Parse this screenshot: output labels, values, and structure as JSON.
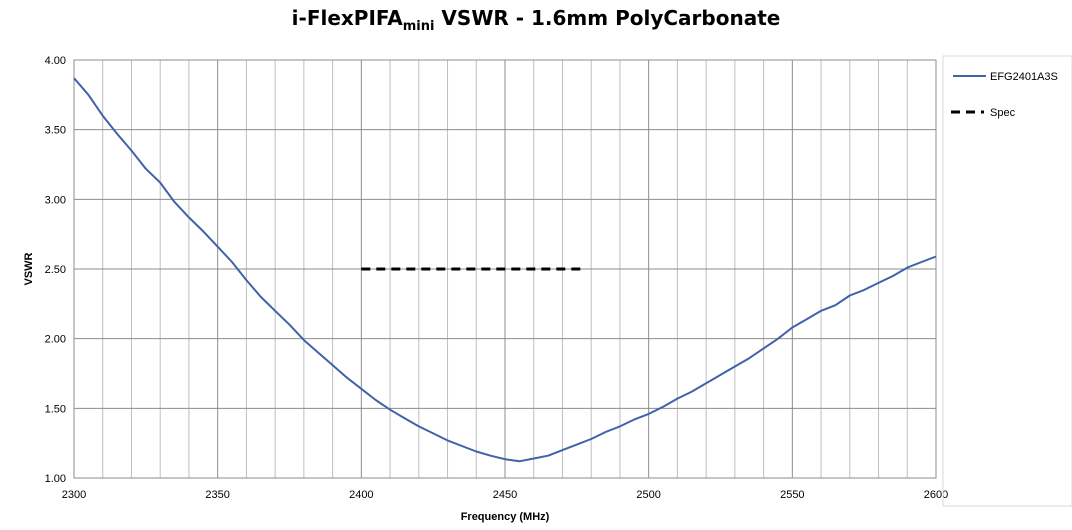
{
  "chart_data": {
    "type": "line",
    "title_main": "i-FlexPIFA",
    "title_sub": "mini",
    "title_rest": " VSWR - 1.6mm PolyCarbonate",
    "xlabel": "Frequency (MHz)",
    "ylabel": "VSWR",
    "xlim": [
      2300,
      2600
    ],
    "ylim": [
      1.0,
      4.0
    ],
    "x_ticks": [
      "2300",
      "2350",
      "2400",
      "2450",
      "2500",
      "2550",
      "2600"
    ],
    "y_ticks": [
      "1.00",
      "1.50",
      "2.00",
      "2.50",
      "3.00",
      "3.50",
      "4.00"
    ],
    "grid": true,
    "legend_position": "right",
    "series": [
      {
        "name": "EFG2401A3S",
        "color": "#4062a8",
        "style": "solid",
        "x": [
          2300,
          2305,
          2310,
          2315,
          2320,
          2325,
          2330,
          2335,
          2340,
          2345,
          2350,
          2355,
          2360,
          2365,
          2370,
          2375,
          2380,
          2385,
          2390,
          2395,
          2400,
          2405,
          2410,
          2415,
          2420,
          2425,
          2430,
          2435,
          2440,
          2445,
          2450,
          2455,
          2460,
          2465,
          2470,
          2475,
          2480,
          2485,
          2490,
          2495,
          2500,
          2505,
          2510,
          2515,
          2520,
          2525,
          2530,
          2535,
          2540,
          2545,
          2550,
          2555,
          2560,
          2565,
          2570,
          2575,
          2580,
          2585,
          2590,
          2595,
          2600
        ],
        "y": [
          3.87,
          3.75,
          3.6,
          3.47,
          3.35,
          3.22,
          3.12,
          2.98,
          2.87,
          2.77,
          2.66,
          2.55,
          2.42,
          2.3,
          2.2,
          2.1,
          1.99,
          1.9,
          1.81,
          1.72,
          1.64,
          1.56,
          1.49,
          1.43,
          1.37,
          1.32,
          1.27,
          1.23,
          1.19,
          1.16,
          1.135,
          1.12,
          1.14,
          1.16,
          1.2,
          1.24,
          1.28,
          1.33,
          1.37,
          1.42,
          1.46,
          1.51,
          1.57,
          1.62,
          1.68,
          1.74,
          1.8,
          1.86,
          1.93,
          2.0,
          2.08,
          2.14,
          2.2,
          2.24,
          2.31,
          2.35,
          2.4,
          2.45,
          2.51,
          2.55,
          2.59
        ]
      },
      {
        "name": "Spec",
        "color": "#000000",
        "style": "dashed",
        "x": [
          2400,
          2477
        ],
        "y": [
          2.5,
          2.5
        ]
      }
    ]
  }
}
